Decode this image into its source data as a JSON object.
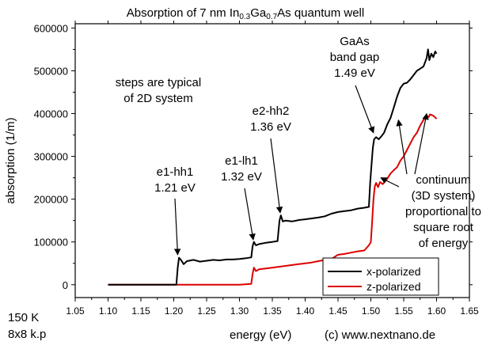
{
  "chart_data": {
    "type": "line",
    "title": {
      "parts": [
        {
          "text": "Absorption of 7 nm In",
          "sub": false
        },
        {
          "text": "0.3",
          "sub": true
        },
        {
          "text": "Ga",
          "sub": false
        },
        {
          "text": "0.7",
          "sub": true
        },
        {
          "text": "As quantum well",
          "sub": false
        }
      ]
    },
    "xlabel": "energy (eV)",
    "ylabel": "absorption (1/m)",
    "xlim": [
      1.05,
      1.65
    ],
    "ylim": [
      -30000,
      610000
    ],
    "x_ticks": [
      "1.05",
      "1.10",
      "1.15",
      "1.20",
      "1.25",
      "1.30",
      "1.35",
      "1.40",
      "1.45",
      "1.50",
      "1.55",
      "1.60",
      "1.65"
    ],
    "y_ticks": [
      "0",
      "100000",
      "200000",
      "300000",
      "400000",
      "500000",
      "600000"
    ],
    "grid": false,
    "legend_position": "bottom-right",
    "series": [
      {
        "name": "x-polarized",
        "color": "#000000",
        "points": [
          [
            1.1,
            0
          ],
          [
            1.15,
            0
          ],
          [
            1.2,
            0
          ],
          [
            1.204,
            0
          ],
          [
            1.206,
            40000
          ],
          [
            1.208,
            63000
          ],
          [
            1.211,
            58000
          ],
          [
            1.215,
            48000
          ],
          [
            1.22,
            55000
          ],
          [
            1.23,
            58000
          ],
          [
            1.24,
            54000
          ],
          [
            1.25,
            56000
          ],
          [
            1.26,
            58000
          ],
          [
            1.27,
            57000
          ],
          [
            1.28,
            59000
          ],
          [
            1.29,
            59000
          ],
          [
            1.3,
            60000
          ],
          [
            1.31,
            62000
          ],
          [
            1.318,
            64000
          ],
          [
            1.32,
            90000
          ],
          [
            1.322,
            100000
          ],
          [
            1.325,
            92000
          ],
          [
            1.33,
            95000
          ],
          [
            1.34,
            98000
          ],
          [
            1.35,
            100000
          ],
          [
            1.358,
            102000
          ],
          [
            1.361,
            150000
          ],
          [
            1.363,
            162000
          ],
          [
            1.366,
            148000
          ],
          [
            1.37,
            150000
          ],
          [
            1.38,
            148000
          ],
          [
            1.39,
            151000
          ],
          [
            1.4,
            153000
          ],
          [
            1.41,
            155000
          ],
          [
            1.42,
            157000
          ],
          [
            1.43,
            160000
          ],
          [
            1.44,
            166000
          ],
          [
            1.45,
            170000
          ],
          [
            1.46,
            172000
          ],
          [
            1.47,
            174000
          ],
          [
            1.48,
            178000
          ],
          [
            1.49,
            180000
          ],
          [
            1.497,
            182000
          ],
          [
            1.499,
            240000
          ],
          [
            1.501,
            280000
          ],
          [
            1.503,
            320000
          ],
          [
            1.505,
            340000
          ],
          [
            1.508,
            345000
          ],
          [
            1.512,
            340000
          ],
          [
            1.516,
            347000
          ],
          [
            1.52,
            355000
          ],
          [
            1.525,
            375000
          ],
          [
            1.53,
            390000
          ],
          [
            1.535,
            415000
          ],
          [
            1.54,
            440000
          ],
          [
            1.545,
            460000
          ],
          [
            1.55,
            470000
          ],
          [
            1.555,
            472000
          ],
          [
            1.56,
            480000
          ],
          [
            1.565,
            490000
          ],
          [
            1.57,
            500000
          ],
          [
            1.575,
            505000
          ],
          [
            1.58,
            510000
          ],
          [
            1.585,
            530000
          ],
          [
            1.587,
            550000
          ],
          [
            1.589,
            525000
          ],
          [
            1.592,
            540000
          ],
          [
            1.595,
            532000
          ],
          [
            1.598,
            545000
          ],
          [
            1.6,
            540000
          ]
        ]
      },
      {
        "name": "z-polarized",
        "color": "#dd0000",
        "points": [
          [
            1.1,
            0
          ],
          [
            1.15,
            0
          ],
          [
            1.2,
            0
          ],
          [
            1.25,
            0
          ],
          [
            1.3,
            0
          ],
          [
            1.318,
            2000
          ],
          [
            1.32,
            25000
          ],
          [
            1.322,
            40000
          ],
          [
            1.325,
            32000
          ],
          [
            1.33,
            36000
          ],
          [
            1.34,
            38000
          ],
          [
            1.35,
            40000
          ],
          [
            1.36,
            42000
          ],
          [
            1.37,
            44000
          ],
          [
            1.38,
            46000
          ],
          [
            1.39,
            48000
          ],
          [
            1.4,
            50000
          ],
          [
            1.41,
            52000
          ],
          [
            1.42,
            55000
          ],
          [
            1.43,
            58000
          ],
          [
            1.44,
            60000
          ],
          [
            1.45,
            70000
          ],
          [
            1.46,
            72000
          ],
          [
            1.47,
            75000
          ],
          [
            1.48,
            78000
          ],
          [
            1.49,
            80000
          ],
          [
            1.497,
            92000
          ],
          [
            1.5,
            100000
          ],
          [
            1.502,
            150000
          ],
          [
            1.504,
            200000
          ],
          [
            1.506,
            230000
          ],
          [
            1.508,
            238000
          ],
          [
            1.511,
            228000
          ],
          [
            1.514,
            240000
          ],
          [
            1.518,
            235000
          ],
          [
            1.522,
            242000
          ],
          [
            1.525,
            248000
          ],
          [
            1.53,
            260000
          ],
          [
            1.535,
            268000
          ],
          [
            1.54,
            275000
          ],
          [
            1.545,
            290000
          ],
          [
            1.55,
            300000
          ],
          [
            1.555,
            315000
          ],
          [
            1.56,
            330000
          ],
          [
            1.565,
            345000
          ],
          [
            1.57,
            355000
          ],
          [
            1.575,
            372000
          ],
          [
            1.58,
            385000
          ],
          [
            1.585,
            395000
          ],
          [
            1.588,
            392000
          ],
          [
            1.59,
            398000
          ],
          [
            1.595,
            395000
          ],
          [
            1.6,
            388000
          ]
        ]
      }
    ],
    "annotations": [
      {
        "id": "steps",
        "lines": [
          "steps are typical",
          "of 2D system"
        ]
      },
      {
        "id": "e1hh1",
        "lines": [
          "e1-hh1",
          "1.21 eV"
        ],
        "arrow_to": [
          1.206,
          70000
        ]
      },
      {
        "id": "e1lh1",
        "lines": [
          "e1-lh1",
          "1.32 eV"
        ],
        "arrow_to": [
          1.321,
          105000
        ]
      },
      {
        "id": "e2hh2",
        "lines": [
          "e2-hh2",
          "1.36 eV"
        ],
        "arrow_to": [
          1.362,
          168000
        ]
      },
      {
        "id": "gaas",
        "lines": [
          "GaAs",
          "band gap",
          "1.49 eV"
        ],
        "arrow_to": [
          1.504,
          355000
        ]
      },
      {
        "id": "continuum",
        "lines": [
          "continuum",
          "(3D system)",
          "proportional to",
          "square root",
          "of energy"
        ],
        "arrows_to": [
          [
            1.585,
            400000
          ],
          [
            1.542,
            385000
          ],
          [
            1.515,
            250000
          ]
        ]
      }
    ],
    "footer": {
      "temperature": "150 K",
      "method": "8x8 k.p",
      "credit": "(c) www.nextnano.de"
    }
  }
}
